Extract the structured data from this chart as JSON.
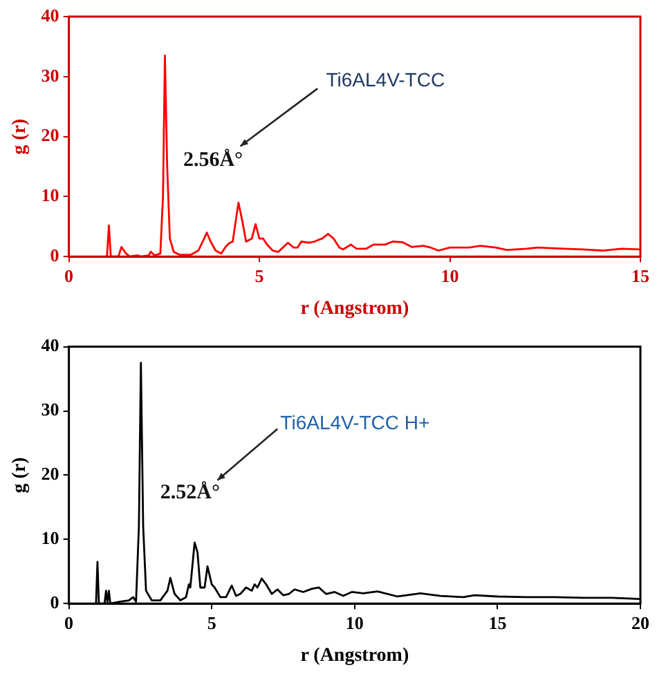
{
  "chart_data": [
    {
      "type": "line",
      "xlabel": "r (Angstrom)",
      "ylabel": "g (r)",
      "xlim": [
        0,
        15
      ],
      "xticks": [
        0,
        5,
        10,
        15
      ],
      "ylim": [
        0,
        40
      ],
      "yticks": [
        0,
        10,
        20,
        30,
        40
      ],
      "grid": false,
      "legend": false,
      "marker": "none",
      "annotations": [
        "Ti6AL4V-TCC",
        "2.56Å°"
      ],
      "series": [
        {
          "color": "#ff0000",
          "x": [
            0.95,
            1.0,
            1.05,
            1.1,
            1.3,
            1.38,
            1.5,
            1.6,
            1.8,
            1.9,
            2.1,
            2.15,
            2.25,
            2.4,
            2.47,
            2.52,
            2.58,
            2.65,
            2.75,
            2.9,
            3.2,
            3.4,
            3.55,
            3.62,
            3.72,
            3.85,
            4.0,
            4.1,
            4.2,
            4.3,
            4.45,
            4.55,
            4.65,
            4.8,
            4.9,
            5.0,
            5.1,
            5.2,
            5.35,
            5.5,
            5.75,
            5.9,
            6.0,
            6.1,
            6.3,
            6.45,
            6.55,
            6.65,
            6.8,
            6.95,
            7.1,
            7.2,
            7.4,
            7.55,
            7.8,
            8.0,
            8.3,
            8.5,
            8.75,
            9.0,
            9.3,
            9.5,
            9.7,
            10.0,
            10.5,
            10.8,
            11.2,
            11.5,
            12.0,
            12.3,
            13.0,
            13.5,
            14.0,
            14.5,
            15.0
          ],
          "values": [
            0,
            0,
            5.2,
            0,
            0,
            1.6,
            0.5,
            0,
            0.2,
            0,
            0.2,
            0.8,
            0.2,
            0.5,
            10,
            33.5,
            15,
            3,
            0.8,
            0.3,
            0.3,
            1,
            3,
            4,
            2.5,
            1,
            0.5,
            1.5,
            2.2,
            2.5,
            9,
            6,
            2.5,
            3,
            5.4,
            3,
            3,
            2,
            1,
            0.8,
            2.3,
            1.5,
            1.5,
            2.5,
            2.3,
            2.5,
            2.8,
            3,
            3.8,
            3,
            1.5,
            1.2,
            2,
            1.3,
            1.3,
            2,
            2,
            2.5,
            2.4,
            1.6,
            1.8,
            1.5,
            1,
            1.5,
            1.5,
            1.8,
            1.5,
            1.1,
            1.3,
            1.5,
            1.3,
            1.2,
            1,
            1.3,
            1.2
          ]
        }
      ]
    },
    {
      "type": "line",
      "xlabel": "r (Angstrom)",
      "ylabel": "g (r)",
      "xlim": [
        0,
        20
      ],
      "xticks": [
        0,
        5,
        10,
        15,
        20
      ],
      "ylim": [
        0,
        40
      ],
      "yticks": [
        0,
        10,
        20,
        30,
        40
      ],
      "grid": false,
      "legend": false,
      "marker": "none",
      "annotations": [
        "Ti6AL4V-TCC H+",
        "2.52Å°"
      ],
      "series": [
        {
          "color": "#000000",
          "x": [
            0.95,
            1.0,
            1.05,
            1.25,
            1.3,
            1.35,
            1.4,
            1.45,
            1.8,
            2.1,
            2.25,
            2.35,
            2.45,
            2.52,
            2.6,
            2.7,
            2.9,
            3.2,
            3.45,
            3.55,
            3.7,
            3.9,
            4.1,
            4.2,
            4.25,
            4.4,
            4.5,
            4.6,
            4.75,
            4.85,
            5.0,
            5.1,
            5.3,
            5.5,
            5.7,
            5.85,
            6.0,
            6.2,
            6.4,
            6.5,
            6.6,
            6.75,
            6.9,
            7.1,
            7.3,
            7.5,
            7.7,
            7.9,
            8.2,
            8.5,
            8.75,
            9.0,
            9.3,
            9.6,
            9.9,
            10.3,
            10.8,
            11.5,
            12.0,
            12.3,
            13.0,
            13.8,
            14.2,
            15.0,
            16.0,
            17.0,
            18.0,
            19.0,
            20.0
          ],
          "values": [
            0,
            6.5,
            0,
            0,
            2,
            0.2,
            2,
            0,
            0.3,
            0.5,
            1,
            0.3,
            12,
            37.5,
            12,
            2,
            0.5,
            0.5,
            2,
            4,
            1.5,
            0.5,
            1,
            3,
            2.5,
            9.5,
            8,
            2.5,
            2.5,
            5.8,
            3,
            2.5,
            1,
            1,
            2.8,
            1.2,
            1.5,
            2.5,
            2,
            3,
            2.5,
            3.9,
            3,
            1.5,
            2.2,
            1.3,
            1.5,
            2.2,
            1.8,
            2.3,
            2.5,
            1.5,
            1.8,
            1.2,
            1.8,
            1.6,
            1.9,
            1.1,
            1.4,
            1.6,
            1.2,
            1.0,
            1.3,
            1.1,
            1.0,
            1.0,
            0.9,
            0.9,
            0.7
          ]
        }
      ]
    }
  ]
}
